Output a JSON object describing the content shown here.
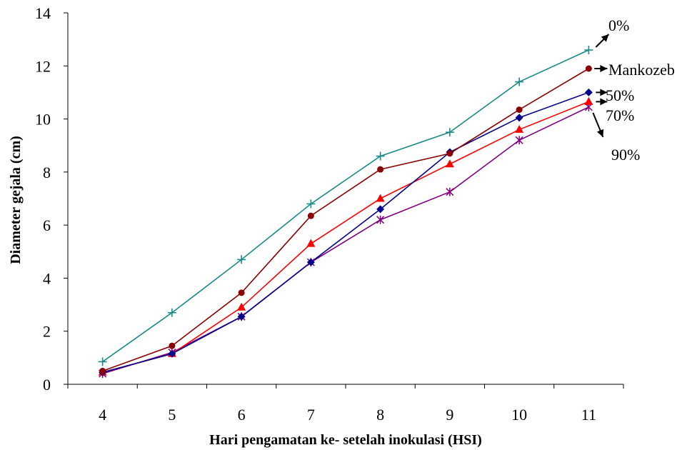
{
  "chart_data": {
    "type": "line",
    "title": "",
    "xlabel": "Hari pengamatan ke- setelah inokulasi (HSI)",
    "ylabel": "Diameter gejala (cm)",
    "x": [
      4,
      5,
      6,
      7,
      8,
      9,
      10,
      11
    ],
    "ylim": [
      0,
      14
    ],
    "yticks": [
      0,
      2,
      4,
      6,
      8,
      10,
      12,
      14
    ],
    "grid": false,
    "series": [
      {
        "name": "0%",
        "marker": "plus",
        "color": "#1a8a8a",
        "values": [
          0.85,
          2.7,
          4.7,
          6.8,
          8.6,
          9.5,
          11.4,
          12.6
        ]
      },
      {
        "name": "Mankozeb",
        "marker": "circle",
        "color": "#8b0000",
        "values": [
          0.5,
          1.45,
          3.45,
          6.35,
          8.1,
          8.7,
          10.35,
          11.9
        ]
      },
      {
        "name": "50%",
        "marker": "diamond",
        "color": "#00008b",
        "values": [
          0.45,
          1.15,
          2.55,
          4.6,
          6.6,
          8.75,
          10.05,
          11.0
        ]
      },
      {
        "name": "70%",
        "marker": "triangle",
        "color": "#ff0000",
        "values": [
          0.45,
          1.15,
          2.9,
          5.3,
          7.0,
          8.3,
          9.6,
          10.65
        ]
      },
      {
        "name": "90%",
        "marker": "asterisk",
        "color": "#800080",
        "values": [
          0.4,
          1.2,
          2.55,
          4.6,
          6.2,
          7.25,
          9.2,
          10.45
        ]
      }
    ]
  }
}
